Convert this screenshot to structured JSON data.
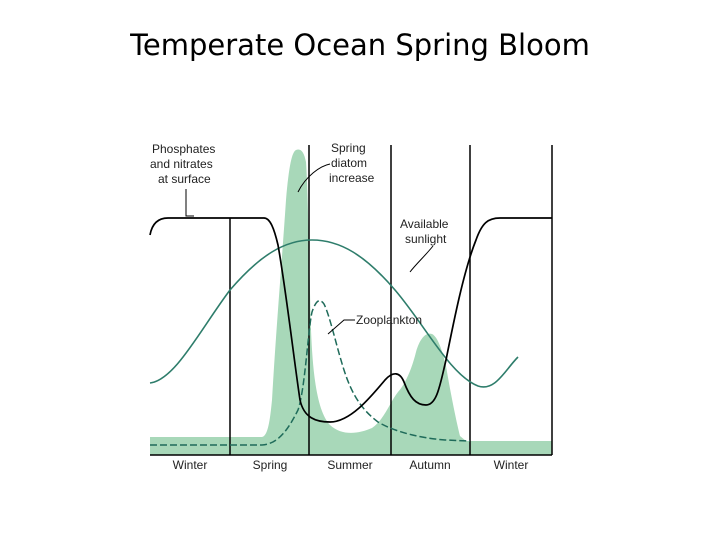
{
  "title": "Temperate Ocean Spring Bloom",
  "labels": {
    "phosphates": [
      "Phosphates",
      "and nitrates",
      "at surface"
    ],
    "diatom": [
      "Spring",
      "diatom",
      "increase"
    ],
    "sunlight": [
      "Available",
      "sunlight"
    ],
    "zooplankton": "Zooplankton"
  },
  "seasons": [
    "Winter",
    "Spring",
    "Summer",
    "Autumn",
    "Winter"
  ],
  "colors": {
    "diatom_fill": "#a8d8b9",
    "sunlight_curve": "#2e7d6b",
    "zooplankton_curve": "#1f6b5a",
    "nutrients_curve": "#000000"
  }
}
